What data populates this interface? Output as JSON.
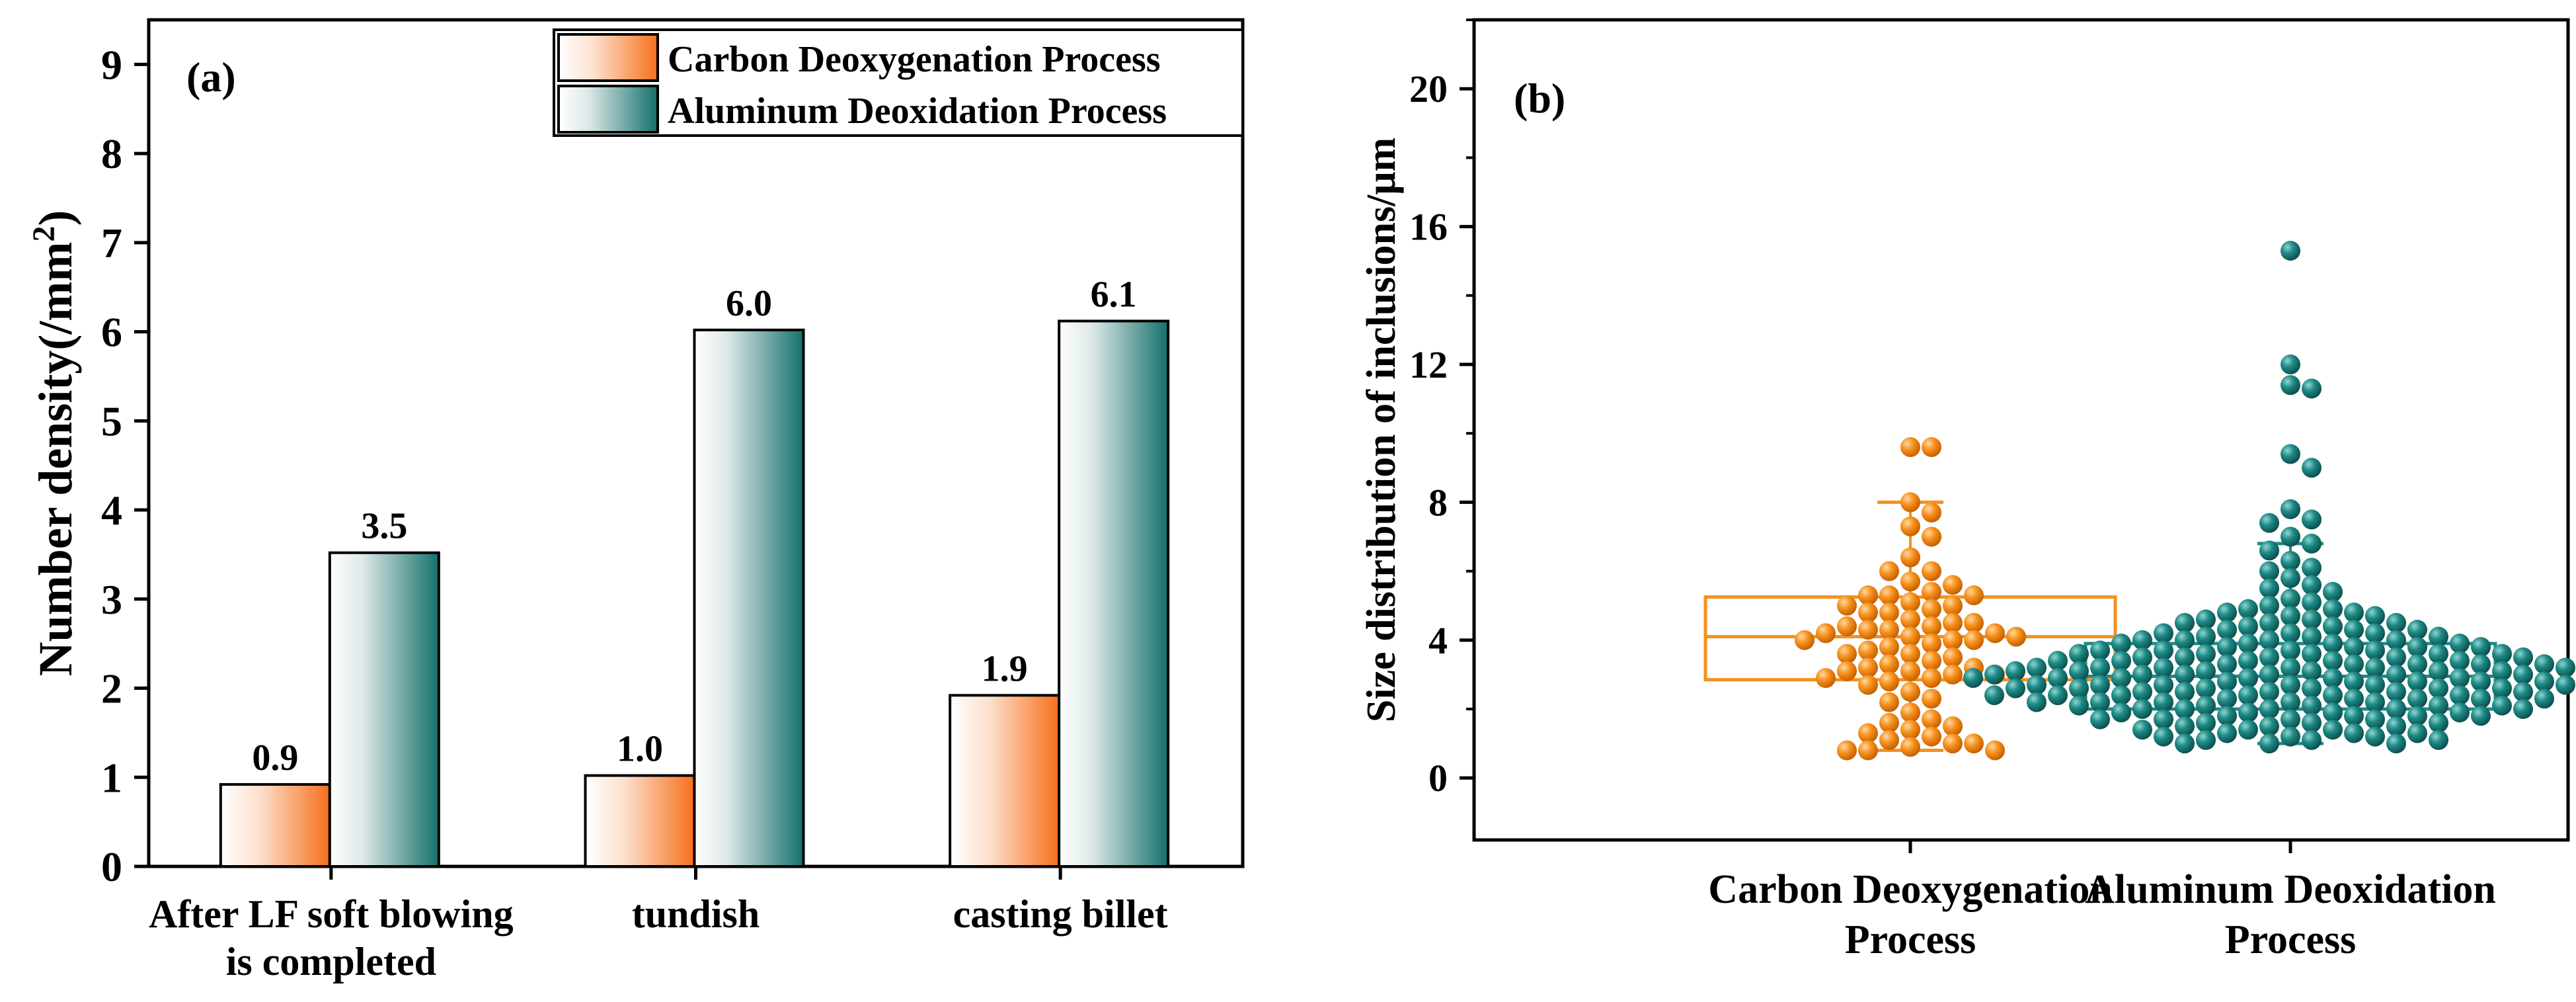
{
  "chart_data": [
    {
      "type": "bar",
      "panel_label": "(a)",
      "ylabel": "Number density(/mm",
      "ylabel_superscript": "2",
      "ylabel_tail": ")",
      "ylim": [
        0,
        9.5
      ],
      "yticks": [
        "0",
        "1",
        "2",
        "3",
        "4",
        "5",
        "6",
        "7",
        "8",
        "9"
      ],
      "categories": [
        [
          "After LF soft blowing",
          "is completed"
        ],
        [
          "tundish"
        ],
        [
          "casting billet"
        ]
      ],
      "series": [
        {
          "name": "Carbon Deoxygenation Process",
          "values": [
            0.92,
            1.02,
            1.92
          ],
          "labels": [
            "0.9",
            "1.0",
            "1.9"
          ],
          "color": "#f97a2e"
        },
        {
          "name": "Aluminum Deoxidation Process",
          "values": [
            3.52,
            6.02,
            6.12
          ],
          "labels": [
            "3.5",
            "6.0",
            "6.1"
          ],
          "color": "#1f7874"
        }
      ],
      "legend_position": "top-right",
      "grid": false
    },
    {
      "type": "scatter",
      "subtype": "box-swarm",
      "panel_label": "(b)",
      "ylabel": "Size distribution of inclusions/μm",
      "ylim": [
        -1.8,
        22
      ],
      "yticks": [
        "0",
        "4",
        "8",
        "12",
        "16",
        "20"
      ],
      "grid": false,
      "groups": [
        {
          "name": [
            "Carbon Deoxygenation",
            "Process"
          ],
          "color": "#f5901f",
          "box": {
            "whisker_low": 0.8,
            "q1": 2.85,
            "median": 4.1,
            "q3": 5.25,
            "whisker_high": 8.0
          },
          "points": [
            9.6,
            9.6,
            8.0,
            7.7,
            7.3,
            7.0,
            6.4,
            6.0,
            6.0,
            5.7,
            5.6,
            5.4,
            5.3,
            5.3,
            5.3,
            5.1,
            5.0,
            5.0,
            4.9,
            4.8,
            4.8,
            4.6,
            4.5,
            4.5,
            4.4,
            4.4,
            4.3,
            4.3,
            4.2,
            4.2,
            4.1,
            4.1,
            4.0,
            4.0,
            4.0,
            3.9,
            3.8,
            3.7,
            3.6,
            3.6,
            3.5,
            3.4,
            3.3,
            3.2,
            3.2,
            3.1,
            3.1,
            3.0,
            3.0,
            2.9,
            2.9,
            2.8,
            2.7,
            2.5,
            2.3,
            2.2,
            1.9,
            1.7,
            1.6,
            1.5,
            1.4,
            1.3,
            1.2,
            1.1,
            1.0,
            1.0,
            0.9,
            0.8,
            0.8,
            0.8
          ]
        },
        {
          "name": [
            "Aluminum Deoxidation",
            "Process"
          ],
          "color": "#1e8a86",
          "box": {
            "whisker_low": 1.0,
            "q1": 2.0,
            "median": 2.95,
            "q3": 3.9,
            "whisker_high": 6.8
          },
          "points": [
            15.3,
            12.0,
            11.4,
            11.3,
            9.4,
            9.0,
            7.8,
            7.5,
            7.4,
            7.0,
            6.8,
            6.6,
            6.3,
            6.1,
            6.0,
            5.8,
            5.6,
            5.5,
            5.4,
            5.2,
            5.1,
            5.0,
            4.9,
            4.9,
            4.8,
            4.8,
            4.7,
            4.7,
            4.6,
            4.6,
            4.5,
            4.5,
            4.5,
            4.4,
            4.4,
            4.3,
            4.3,
            4.3,
            4.2,
            4.2,
            4.2,
            4.1,
            4.1,
            4.1,
            4.0,
            4.0,
            4.0,
            4.0,
            3.9,
            3.9,
            3.9,
            3.9,
            3.8,
            3.8,
            3.8,
            3.8,
            3.7,
            3.7,
            3.7,
            3.7,
            3.6,
            3.6,
            3.6,
            3.6,
            3.6,
            3.5,
            3.5,
            3.5,
            3.5,
            3.5,
            3.4,
            3.4,
            3.4,
            3.4,
            3.4,
            3.3,
            3.3,
            3.3,
            3.3,
            3.3,
            3.2,
            3.2,
            3.2,
            3.2,
            3.2,
            3.2,
            3.1,
            3.1,
            3.1,
            3.1,
            3.1,
            3.1,
            3.0,
            3.0,
            3.0,
            3.0,
            3.0,
            3.0,
            3.0,
            2.9,
            2.9,
            2.9,
            2.9,
            2.9,
            2.9,
            2.9,
            2.8,
            2.8,
            2.8,
            2.8,
            2.8,
            2.8,
            2.7,
            2.7,
            2.7,
            2.7,
            2.7,
            2.7,
            2.6,
            2.6,
            2.6,
            2.6,
            2.6,
            2.6,
            2.5,
            2.5,
            2.5,
            2.5,
            2.5,
            2.5,
            2.4,
            2.4,
            2.4,
            2.4,
            2.4,
            2.4,
            2.3,
            2.3,
            2.3,
            2.3,
            2.3,
            2.3,
            2.2,
            2.2,
            2.2,
            2.2,
            2.2,
            2.1,
            2.1,
            2.1,
            2.1,
            2.1,
            2.0,
            2.0,
            2.0,
            2.0,
            2.0,
            1.9,
            1.9,
            1.9,
            1.9,
            1.8,
            1.8,
            1.8,
            1.8,
            1.7,
            1.7,
            1.7,
            1.7,
            1.6,
            1.6,
            1.6,
            1.5,
            1.5,
            1.5,
            1.4,
            1.4,
            1.4,
            1.3,
            1.3,
            1.3,
            1.2,
            1.2,
            1.2,
            1.1,
            1.1,
            1.1,
            1.0,
            1.0,
            1.0
          ]
        }
      ]
    }
  ]
}
